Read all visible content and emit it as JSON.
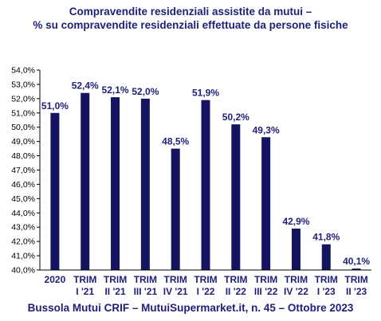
{
  "chart_data": {
    "type": "bar",
    "title": "Compravendite residenziali assistite da mutui –",
    "subtitle": "% su compravendite residenziali effettuate da persone fisiche",
    "categories": [
      [
        "2020"
      ],
      [
        "TRIM",
        "I '21"
      ],
      [
        "TRIM",
        "II '21"
      ],
      [
        "TRIM",
        "III '21"
      ],
      [
        "TRIM",
        "IV '21"
      ],
      [
        "TRIM",
        "I '22"
      ],
      [
        "TRIM",
        "II '22"
      ],
      [
        "TRIM",
        "III '22"
      ],
      [
        "TRIM",
        "IV '22"
      ],
      [
        "TRIM",
        "I '23"
      ],
      [
        "TRIM",
        "II '23"
      ]
    ],
    "values": [
      51.0,
      52.4,
      52.1,
      52.0,
      48.5,
      51.9,
      50.2,
      49.3,
      42.9,
      41.8,
      40.1
    ],
    "data_labels": [
      "51,0%",
      "52,4%",
      "52,1%",
      "52,0%",
      "48,5%",
      "51,9%",
      "50,2%",
      "49,3%",
      "42,9%",
      "41,8%",
      "40,1%"
    ],
    "ylim": [
      40,
      54
    ],
    "ytick_step": 1,
    "ytick_labels": [
      "40,0%",
      "41,0%",
      "42,0%",
      "43,0%",
      "44,0%",
      "45,0%",
      "46,0%",
      "47,0%",
      "48,0%",
      "49,0%",
      "50,0%",
      "51,0%",
      "52,0%",
      "53,0%",
      "54,0%"
    ],
    "grid": false,
    "legend": "none",
    "xlabel": "",
    "ylabel": "",
    "colors": {
      "bar": "#141461",
      "text": "#1f1f7a",
      "axis": "#000000"
    }
  },
  "footer": "Bussola Mutui CRIF – MutuiSupermarket.it, n. 45 – Ottobre 2023"
}
